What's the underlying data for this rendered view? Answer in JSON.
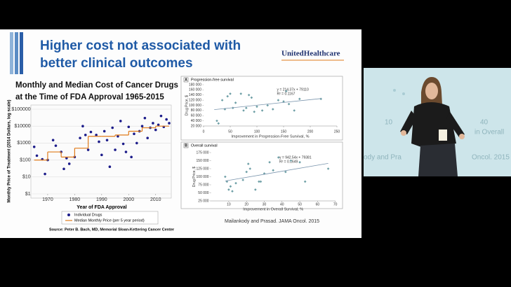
{
  "slide": {
    "title_lines": [
      "Higher cost not associated with",
      "better clinical outcomes"
    ],
    "logo": "UnitedHealthcare",
    "citation": "Mailankody and Prasad. JAMA Oncol. 2015"
  },
  "background_screen": {
    "texts": [
      "10",
      "40",
      "in Overall",
      "ody and Pra",
      "Oncol. 2015"
    ]
  },
  "chart_data": [
    {
      "type": "scatter",
      "title": "Monthly and Median Cost of Cancer Drugs",
      "subtitle": "at the Time of FDA Approval   1965-2015",
      "xlabel": "Year of FDA Approval",
      "ylabel": "Monthly Price of Treatment (2014 Dollars, log scale)",
      "source": "Source: Peter B. Bach, MD, Memorial Sloan-Kettering Cancer Center",
      "xlim": [
        1965,
        2015
      ],
      "xticks": [
        1970,
        1980,
        1990,
        2000,
        2010
      ],
      "ylim": [
        1,
        100000
      ],
      "log_y": true,
      "grid": true,
      "yticks": [
        {
          "value": 1,
          "label": "$1"
        },
        {
          "value": 10,
          "label": "$10"
        },
        {
          "value": 100,
          "label": "$100"
        },
        {
          "value": 1000,
          "label": "$1000"
        },
        {
          "value": 10000,
          "label": "$10000"
        },
        {
          "value": 100000,
          "label": "$100000"
        }
      ],
      "series": [
        {
          "name": "Individual Drugs",
          "type": "scatter",
          "color": "#1c1c8a",
          "x": [
            1965,
            1966,
            1968,
            1969,
            1970,
            1972,
            1973,
            1975,
            1976,
            1977,
            1978,
            1980,
            1982,
            1983,
            1984,
            1985,
            1986,
            1988,
            1989,
            1990,
            1991,
            1992,
            1993,
            1994,
            1995,
            1996,
            1997,
            1998,
            1999,
            2000,
            2001,
            2002,
            2003,
            2004,
            2005,
            2006,
            2007,
            2008,
            2009,
            2010,
            2011,
            2012,
            2013,
            2014,
            2015
          ],
          "values": [
            600,
            180,
            110,
            15,
            100,
            1500,
            700,
            300,
            30,
            130,
            60,
            150,
            2000,
            10000,
            3000,
            400,
            4500,
            3000,
            1200,
            200,
            5000,
            1500,
            40,
            8000,
            400,
            2500,
            20000,
            900,
            300,
            9000,
            150,
            3500,
            1000,
            5000,
            10000,
            30000,
            2000,
            8000,
            15000,
            6000,
            12000,
            40000,
            9000,
            25000,
            15000
          ]
        },
        {
          "name": "Median Monthly Price (per 5 year period)",
          "type": "step",
          "color": "#e07b1a",
          "x": [
            1965,
            1970,
            1975,
            1980,
            1985,
            1990,
            1995,
            2000,
            2005,
            2010
          ],
          "values": [
            100,
            300,
            150,
            500,
            2500,
            2500,
            3000,
            5000,
            8000,
            10000
          ]
        }
      ]
    },
    {
      "type": "scatter",
      "label": "A",
      "title": "Progression-free survival",
      "xlabel": "Improvement in Progression-Free Survival, %",
      "ylabel": "Drug Price, $",
      "annotations": [
        "y = 214.37x + 79110",
        "R² = 0.1167"
      ],
      "xlim": [
        0,
        250
      ],
      "xticks": [
        0,
        50,
        100,
        150,
        200,
        250
      ],
      "ylim": [
        20000,
        180000
      ],
      "yticks": [
        {
          "value": 20000,
          "label": "20 000"
        },
        {
          "value": 40000,
          "label": "40 000"
        },
        {
          "value": 60000,
          "label": "60 000"
        },
        {
          "value": 80000,
          "label": "80 000"
        },
        {
          "value": 100000,
          "label": "100 000"
        },
        {
          "value": 120000,
          "label": "120 000"
        },
        {
          "value": 140000,
          "label": "140 000"
        },
        {
          "value": 160000,
          "label": "160 000"
        },
        {
          "value": 180000,
          "label": "180 000"
        }
      ],
      "series": [
        {
          "type": "scatter",
          "color": "#6e9fa6",
          "x": [
            25,
            28,
            35,
            40,
            45,
            50,
            55,
            60,
            70,
            75,
            80,
            85,
            90,
            95,
            100,
            110,
            120,
            130,
            140,
            150,
            155,
            160,
            170,
            180,
            220
          ],
          "values": [
            40000,
            30000,
            120000,
            85000,
            135000,
            145000,
            90000,
            110000,
            145000,
            80000,
            90000,
            140000,
            130000,
            75000,
            95000,
            80000,
            100000,
            85000,
            120000,
            115000,
            155000,
            105000,
            80000,
            125000,
            125000
          ]
        },
        {
          "type": "line",
          "color": "#7a95ad",
          "x": [
            20,
            220
          ],
          "values": [
            83397,
            126271
          ]
        }
      ]
    },
    {
      "type": "scatter",
      "label": "B",
      "title": "Overall survival",
      "xlabel": "Improvement in Overall Survival, %",
      "ylabel": "Drug Price, $",
      "annotations": [
        "y = 942.54x + 79381",
        "R² = 0.1649"
      ],
      "xlim": [
        0,
        70
      ],
      "xticks": [
        10,
        20,
        30,
        40,
        50,
        60,
        70
      ],
      "ylim": [
        25000,
        175000
      ],
      "yticks": [
        {
          "value": 25000,
          "label": "25 000"
        },
        {
          "value": 50000,
          "label": "50 000"
        },
        {
          "value": 75000,
          "label": "75 000"
        },
        {
          "value": 100000,
          "label": "100 000"
        },
        {
          "value": 125000,
          "label": "125 000"
        },
        {
          "value": 150000,
          "label": "150 000"
        },
        {
          "value": 175000,
          "label": "175 000"
        }
      ],
      "series": [
        {
          "type": "scatter",
          "color": "#6e9fa6",
          "x": [
            8,
            9,
            10,
            11,
            12,
            14,
            18,
            20,
            21,
            22,
            25,
            27,
            28,
            30,
            33,
            35,
            38,
            42,
            45,
            50,
            53,
            66
          ],
          "values": [
            100000,
            85000,
            60000,
            70000,
            55000,
            80000,
            90000,
            115000,
            140000,
            125000,
            60000,
            85000,
            85000,
            110000,
            145000,
            120000,
            160000,
            115000,
            150000,
            145000,
            85000,
            125000
          ]
        },
        {
          "type": "line",
          "color": "#7a95ad",
          "x": [
            8,
            66
          ],
          "values": [
            86921,
            141589
          ]
        }
      ]
    }
  ]
}
